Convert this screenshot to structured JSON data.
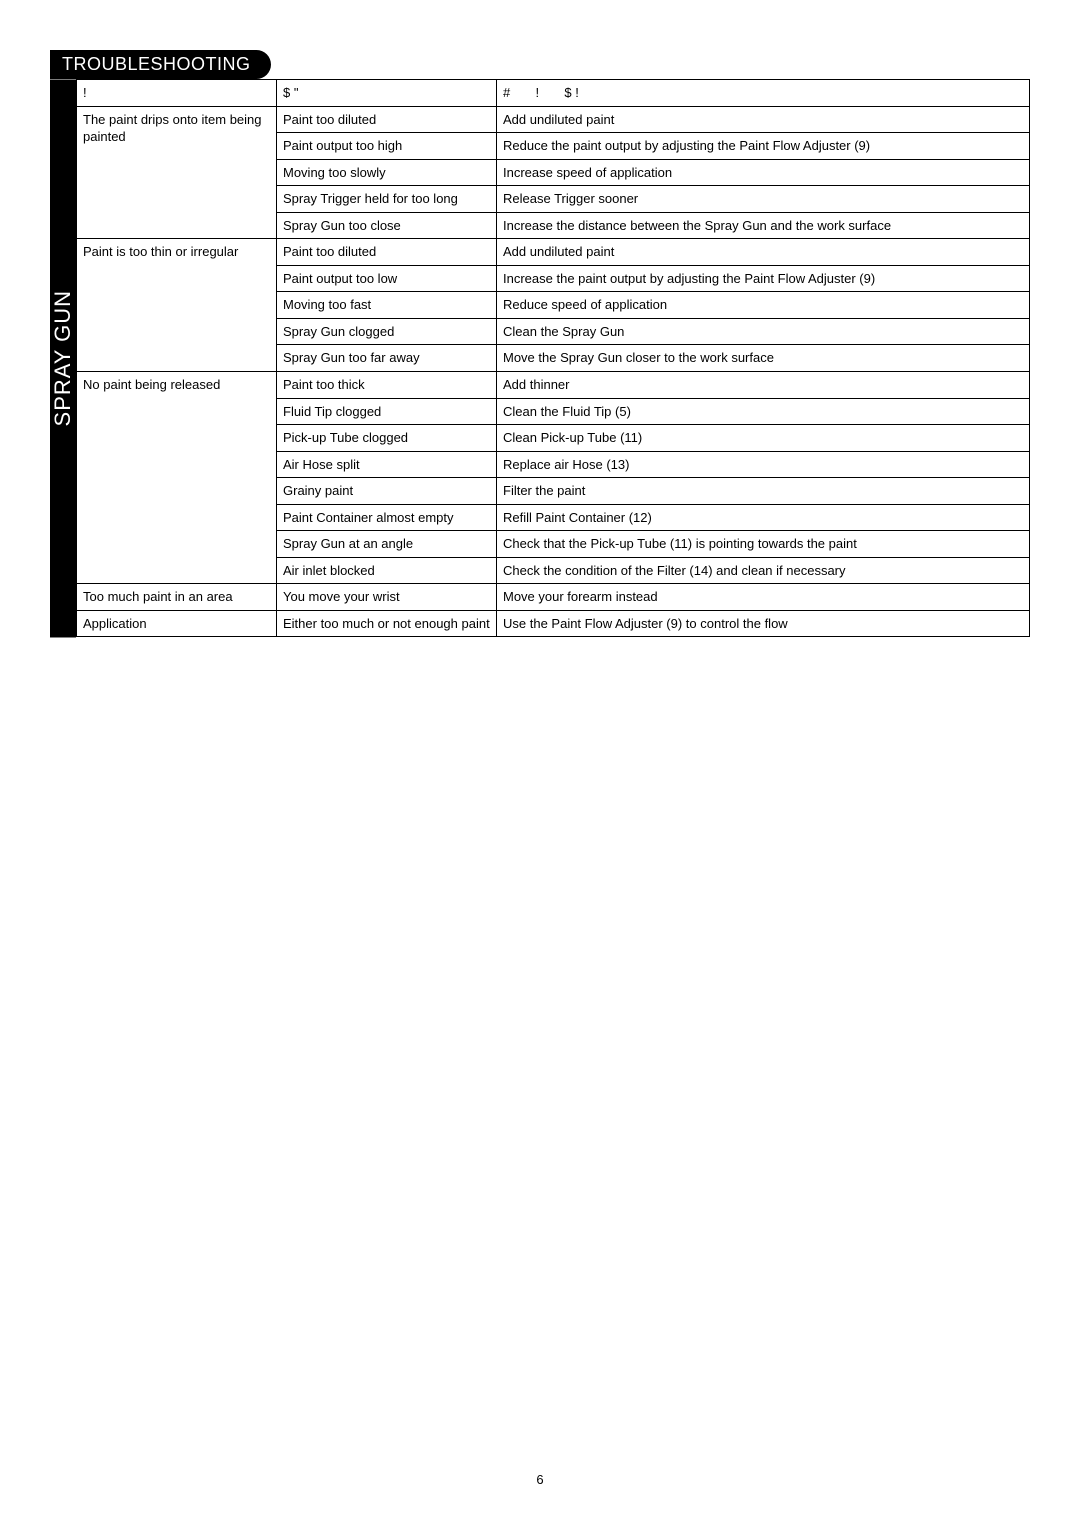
{
  "section_title": "TROUBLESHOOTING",
  "side_label": "SPRAY GUN",
  "page_number": "6",
  "headers": {
    "problem": "!",
    "cause": "$ \"",
    "remedy": "#       !       $ !"
  },
  "groups": [
    {
      "problem": "The paint drips onto item being painted",
      "rows": [
        {
          "cause": "Paint too diluted",
          "remedy": "Add undiluted paint"
        },
        {
          "cause": "Paint output too high",
          "remedy": "Reduce the paint output by adjusting the Paint Flow Adjuster (9)"
        },
        {
          "cause": "Moving too slowly",
          "remedy": "Increase speed of application"
        },
        {
          "cause": "Spray Trigger held for too long",
          "remedy": "Release Trigger sooner"
        },
        {
          "cause": "Spray Gun too close",
          "remedy": "Increase the distance between the Spray Gun and the work surface"
        }
      ]
    },
    {
      "problem": "Paint is too thin or irregular",
      "rows": [
        {
          "cause": "Paint too diluted",
          "remedy": "Add undiluted paint"
        },
        {
          "cause": "Paint output too low",
          "remedy": "Increase the paint output by adjusting the Paint Flow Adjuster (9)"
        },
        {
          "cause": "Moving too fast",
          "remedy": "Reduce speed of application"
        },
        {
          "cause": "Spray Gun clogged",
          "remedy": "Clean the Spray Gun"
        },
        {
          "cause": "Spray Gun too far away",
          "remedy": "Move the Spray Gun closer to the work surface"
        }
      ]
    },
    {
      "problem": "No paint being released",
      "rows": [
        {
          "cause": "Paint too thick",
          "remedy": "Add thinner"
        },
        {
          "cause": "Fluid Tip clogged",
          "remedy": "Clean the Fluid Tip (5)"
        },
        {
          "cause": "Pick-up Tube clogged",
          "remedy": "Clean Pick-up Tube (11)"
        },
        {
          "cause": "Air Hose split",
          "remedy": "Replace air Hose (13)"
        },
        {
          "cause": "Grainy paint",
          "remedy": "Filter the paint"
        },
        {
          "cause": "Paint Container almost empty",
          "remedy": "Refill Paint Container (12)"
        },
        {
          "cause": "Spray Gun at an angle",
          "remedy": "Check that the Pick-up Tube (11) is pointing towards the paint"
        },
        {
          "cause": "Air inlet blocked",
          "remedy": "Check the condition of the Filter (14) and clean if necessary"
        }
      ]
    },
    {
      "problem": "Too much paint in an area",
      "rows": [
        {
          "cause": "You move your wrist",
          "remedy": "Move your forearm instead"
        }
      ]
    },
    {
      "problem": "Application",
      "rows": [
        {
          "cause": "Either too much or not enough  paint",
          "remedy": "Use the Paint Flow Adjuster (9) to control the flow"
        }
      ]
    }
  ]
}
